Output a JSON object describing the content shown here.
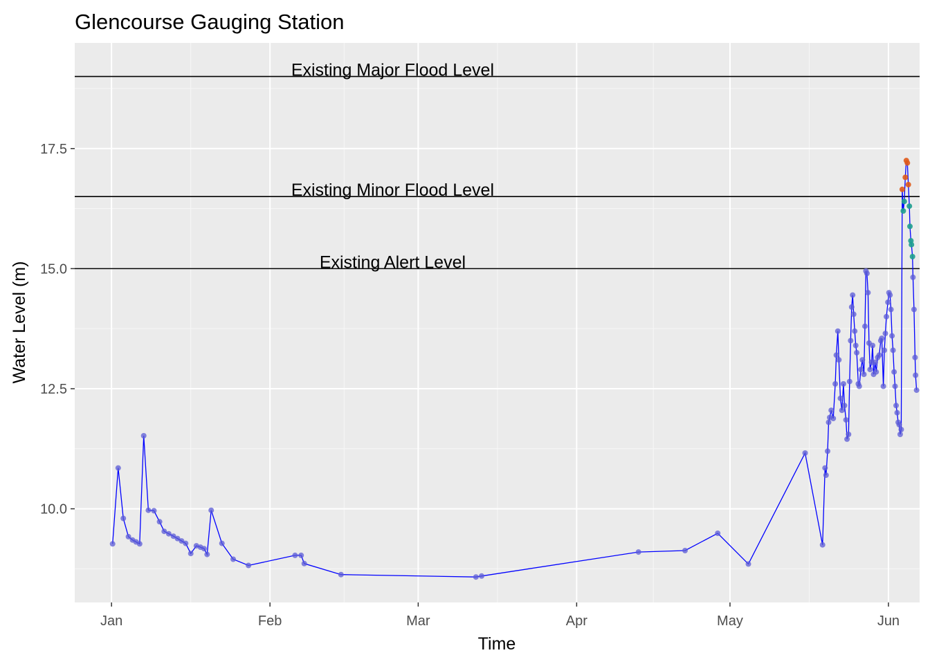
{
  "chart_data": {
    "type": "line",
    "title": "Glencourse Gauging Station",
    "xlabel": "Time",
    "ylabel": "Water Level (m)",
    "x_ticks": [
      {
        "label": "Jan",
        "day": 0
      },
      {
        "label": "Feb",
        "day": 31
      },
      {
        "label": "Mar",
        "day": 60
      },
      {
        "label": "Apr",
        "day": 91
      },
      {
        "label": "May",
        "day": 121
      },
      {
        "label": "Jun",
        "day": 152
      }
    ],
    "y_ticks": [
      {
        "label": "10.0",
        "value": 10.0
      },
      {
        "label": "12.5",
        "value": 12.5
      },
      {
        "label": "15.0",
        "value": 15.0
      },
      {
        "label": "17.5",
        "value": 17.5
      }
    ],
    "xlim": [
      -7.2,
      158.1
    ],
    "ylim": [
      8.05,
      19.7
    ],
    "reference_lines": [
      {
        "label": "Existing Major Flood Level",
        "value": 19.0
      },
      {
        "label": "Existing Minor Flood Level",
        "value": 16.5
      },
      {
        "label": "Existing Alert Level",
        "value": 15.0
      }
    ],
    "grid": true,
    "line_color": "#0000ff",
    "point_color": "#5b5bd6",
    "alert_point_colors": {
      "above_alert": "#1e9e8f",
      "above_minor": "#e05a1a"
    },
    "panel_background": "#ebebeb",
    "series": [
      {
        "points": [
          [
            0.2,
            9.27
          ],
          [
            1.3,
            10.85
          ],
          [
            2.3,
            9.8
          ],
          [
            3.3,
            9.42
          ],
          [
            4.1,
            9.35
          ],
          [
            4.8,
            9.31
          ],
          [
            5.5,
            9.27
          ],
          [
            6.3,
            11.52
          ],
          [
            7.2,
            9.97
          ],
          [
            8.3,
            9.96
          ],
          [
            9.4,
            9.73
          ],
          [
            10.3,
            9.53
          ],
          [
            11.2,
            9.48
          ],
          [
            12.1,
            9.43
          ],
          [
            12.9,
            9.38
          ],
          [
            13.7,
            9.33
          ],
          [
            14.5,
            9.28
          ],
          [
            15.5,
            9.07
          ],
          [
            16.6,
            9.23
          ],
          [
            17.4,
            9.2
          ],
          [
            18.1,
            9.17
          ],
          [
            18.7,
            9.05
          ],
          [
            19.5,
            9.97
          ],
          [
            21.6,
            9.28
          ],
          [
            23.8,
            8.95
          ],
          [
            26.8,
            8.82
          ],
          [
            35.9,
            9.03
          ],
          [
            37.1,
            9.03
          ],
          [
            37.7,
            8.86
          ],
          [
            44.9,
            8.63
          ],
          [
            71.3,
            8.58
          ],
          [
            72.4,
            8.6
          ],
          [
            103.1,
            9.1
          ],
          [
            112.2,
            9.13
          ],
          [
            118.6,
            9.49
          ],
          [
            124.6,
            8.85
          ],
          [
            135.7,
            11.16
          ],
          [
            139.1,
            9.25
          ],
          [
            139.6,
            10.85
          ],
          [
            139.8,
            10.7
          ],
          [
            140.1,
            11.2
          ],
          [
            140.3,
            11.8
          ],
          [
            140.5,
            11.9
          ],
          [
            140.8,
            12.05
          ],
          [
            141.2,
            11.88
          ],
          [
            141.6,
            12.6
          ],
          [
            141.8,
            13.2
          ],
          [
            142.1,
            13.7
          ],
          [
            142.3,
            13.1
          ],
          [
            142.6,
            12.3
          ],
          [
            142.9,
            12.05
          ],
          [
            143.2,
            12.6
          ],
          [
            143.4,
            12.15
          ],
          [
            143.7,
            11.85
          ],
          [
            143.9,
            11.45
          ],
          [
            144.2,
            11.55
          ],
          [
            144.4,
            12.65
          ],
          [
            144.6,
            13.5
          ],
          [
            144.8,
            14.2
          ],
          [
            145.0,
            14.45
          ],
          [
            145.2,
            14.05
          ],
          [
            145.4,
            13.7
          ],
          [
            145.6,
            13.4
          ],
          [
            145.8,
            13.25
          ],
          [
            146.1,
            12.6
          ],
          [
            146.3,
            12.55
          ],
          [
            146.6,
            12.9
          ],
          [
            146.9,
            13.1
          ],
          [
            147.2,
            12.8
          ],
          [
            147.4,
            13.8
          ],
          [
            147.6,
            14.95
          ],
          [
            147.8,
            14.9
          ],
          [
            148.0,
            14.5
          ],
          [
            148.2,
            13.45
          ],
          [
            148.4,
            12.9
          ],
          [
            148.7,
            13.05
          ],
          [
            148.9,
            13.4
          ],
          [
            149.1,
            12.8
          ],
          [
            149.4,
            13.05
          ],
          [
            149.6,
            12.85
          ],
          [
            149.9,
            13.15
          ],
          [
            150.2,
            13.2
          ],
          [
            150.5,
            13.5
          ],
          [
            150.7,
            13.55
          ],
          [
            151.0,
            12.55
          ],
          [
            151.2,
            13.3
          ],
          [
            151.4,
            13.65
          ],
          [
            151.6,
            14.0
          ],
          [
            151.9,
            14.3
          ],
          [
            152.1,
            14.5
          ],
          [
            152.3,
            14.45
          ],
          [
            152.5,
            14.15
          ],
          [
            152.7,
            13.6
          ],
          [
            152.9,
            13.3
          ],
          [
            153.1,
            12.85
          ],
          [
            153.3,
            12.55
          ],
          [
            153.5,
            12.15
          ],
          [
            153.7,
            12.0
          ],
          [
            153.9,
            11.8
          ],
          [
            154.1,
            11.75
          ],
          [
            154.3,
            11.55
          ],
          [
            154.5,
            11.65
          ],
          [
            154.7,
            16.65
          ],
          [
            154.9,
            16.2
          ],
          [
            155.1,
            16.4
          ],
          [
            155.3,
            16.9
          ],
          [
            155.5,
            17.25
          ],
          [
            155.7,
            17.2
          ],
          [
            155.9,
            16.75
          ],
          [
            156.1,
            16.3
          ],
          [
            156.2,
            15.88
          ],
          [
            156.4,
            15.58
          ],
          [
            156.5,
            15.5
          ],
          [
            156.7,
            15.25
          ],
          [
            156.8,
            14.82
          ],
          [
            157.0,
            14.15
          ],
          [
            157.2,
            13.15
          ],
          [
            157.3,
            12.78
          ],
          [
            157.5,
            12.47
          ]
        ]
      }
    ]
  }
}
